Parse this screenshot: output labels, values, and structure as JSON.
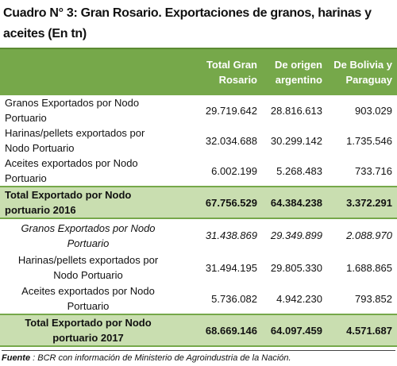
{
  "header": {
    "title": "Cuadro N° 3: Gran Rosario. Exportaciones de granos, harinas y aceites (En tn)"
  },
  "table": {
    "columns": [
      "",
      "Total Gran Rosario",
      "De origen argentino",
      "De Bolivia y Paraguay"
    ],
    "rows": [
      [
        "Granos Exportados por Nodo Portuario",
        "29.719.642",
        "28.816.613",
        "903.029"
      ],
      [
        "Harinas/pellets exportados por Nodo Portuario",
        "32.034.688",
        "30.299.142",
        "1.735.546"
      ],
      [
        "Aceites exportados por Nodo Portuario",
        "6.002.199",
        "5.268.483",
        "733.716"
      ],
      [
        "Total Exportado por Nodo portuario 2016",
        "67.756.529",
        "64.384.238",
        "3.372.291"
      ],
      [
        "Granos Exportados por Nodo Portuario",
        "31.438.869",
        "29.349.899",
        "2.088.970"
      ],
      [
        "Harinas/pellets exportados por Nodo Portuario",
        "31.494.195",
        "29.805.330",
        "1.688.865"
      ],
      [
        "Aceites exportados por Nodo Portuario",
        "5.736.082",
        "4.942.230",
        "793.852"
      ],
      [
        "Total Exportado por Nodo portuario 2017",
        "68.669.146",
        "64.097.459",
        "4.571.687"
      ]
    ]
  },
  "footer": {
    "label": "Fuente",
    "text": ": BCR con información de Ministerio de Agroindustria de la Nación."
  }
}
